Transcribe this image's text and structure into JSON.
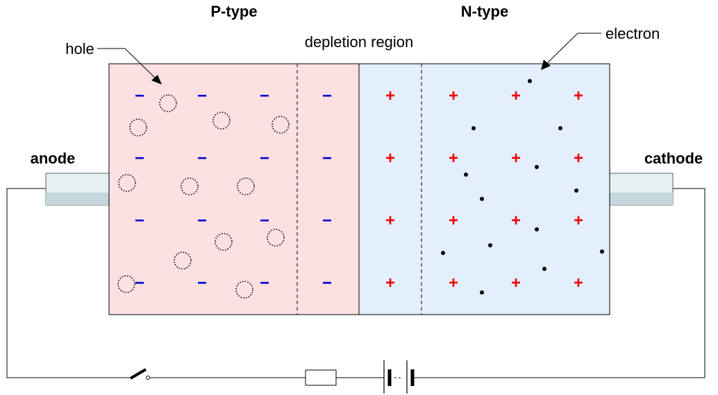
{
  "labels": {
    "p_type": "P-type",
    "n_type": "N-type",
    "depletion": "depletion region",
    "hole": "hole",
    "electron": "electron",
    "anode": "anode",
    "cathode": "cathode"
  },
  "symbols": {
    "negative_ion": "−",
    "positive_ion": "+"
  },
  "colors": {
    "p_region": "#fde0e2",
    "n_region": "#e3effc",
    "negative_ion": "#0000cc",
    "positive_ion": "#ee0000",
    "terminal": "#e6eff2",
    "terminal_shade": "#c3d7dd"
  }
}
